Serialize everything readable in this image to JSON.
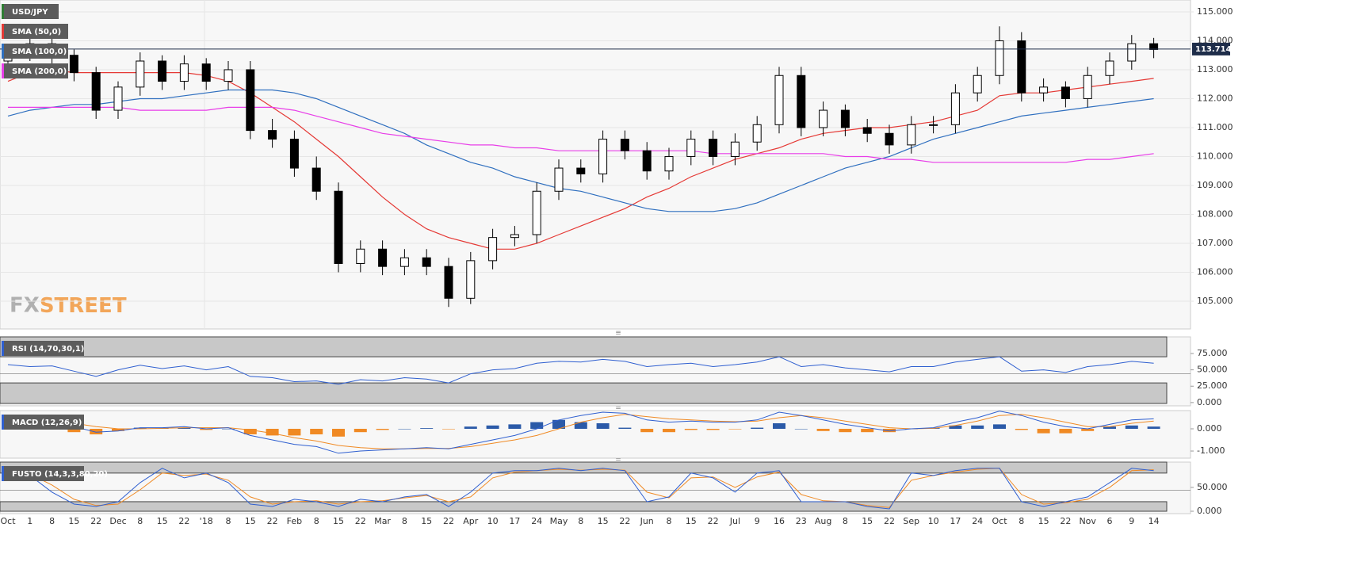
{
  "chart_data": [
    {
      "type": "candlestick",
      "title": "USD/JPY",
      "categories": [
        "Oct",
        "1",
        "8",
        "15",
        "22",
        "Dec",
        "8",
        "15",
        "22",
        "'18",
        "8",
        "15",
        "22",
        "Feb",
        "8",
        "15",
        "22",
        "Mar",
        "8",
        "15",
        "22",
        "Apr",
        "10",
        "17",
        "24",
        "May",
        "8",
        "15",
        "22",
        "Jun",
        "8",
        "15",
        "22",
        "Jul",
        "9",
        "16",
        "23",
        "Aug",
        "8",
        "15",
        "22",
        "Sep",
        "10",
        "17",
        "24",
        "Oct",
        "8",
        "15",
        "22",
        "Nov",
        "6",
        "9",
        "14"
      ],
      "open": [
        113.3,
        113.6,
        113.9,
        113.5,
        112.9,
        111.6,
        112.4,
        113.3,
        112.6,
        113.2,
        112.6,
        113.0,
        110.9,
        110.6,
        109.6,
        108.8,
        106.3,
        106.8,
        106.2,
        106.5,
        106.2,
        105.1,
        106.4,
        107.2,
        107.3,
        108.8,
        109.6,
        109.4,
        110.6,
        110.2,
        109.5,
        110.0,
        110.6,
        110.0,
        110.5,
        111.1,
        112.8,
        111.0,
        111.6,
        111.0,
        110.8,
        110.4,
        111.1,
        111.1,
        112.2,
        112.8,
        114.0,
        112.2,
        112.4,
        112.0,
        112.8,
        113.3,
        113.9
      ],
      "high": [
        113.9,
        114.2,
        114.2,
        113.7,
        113.1,
        112.6,
        113.6,
        113.5,
        113.5,
        113.4,
        113.3,
        113.3,
        111.3,
        110.9,
        110.0,
        109.1,
        107.1,
        107.1,
        106.8,
        106.8,
        106.5,
        106.7,
        107.5,
        107.6,
        109.1,
        109.9,
        109.9,
        110.9,
        110.9,
        110.5,
        110.3,
        110.9,
        110.9,
        110.8,
        111.4,
        113.1,
        113.1,
        111.9,
        111.8,
        111.3,
        111.1,
        111.4,
        111.4,
        112.5,
        113.1,
        114.5,
        114.3,
        112.7,
        112.6,
        113.1,
        113.6,
        114.2,
        114.1
      ],
      "low": [
        113.0,
        113.3,
        113.2,
        112.6,
        111.3,
        111.3,
        112.1,
        112.3,
        112.3,
        112.3,
        112.3,
        110.6,
        110.3,
        109.3,
        108.5,
        106.0,
        106.0,
        105.9,
        105.9,
        105.9,
        104.8,
        104.9,
        106.1,
        106.9,
        107.0,
        108.5,
        109.1,
        109.1,
        109.9,
        109.2,
        109.2,
        109.7,
        109.7,
        109.7,
        110.2,
        110.8,
        110.7,
        110.7,
        110.7,
        110.5,
        110.1,
        110.1,
        110.8,
        110.8,
        111.9,
        112.5,
        111.9,
        111.9,
        111.7,
        111.7,
        112.5,
        113.0,
        113.4
      ],
      "close": [
        113.6,
        113.9,
        113.5,
        112.9,
        111.6,
        112.4,
        113.3,
        112.6,
        113.2,
        112.6,
        113.0,
        110.9,
        110.6,
        109.6,
        108.8,
        106.3,
        106.8,
        106.2,
        106.5,
        106.2,
        105.1,
        106.4,
        107.2,
        107.3,
        108.8,
        109.6,
        109.4,
        110.6,
        110.2,
        109.5,
        110.0,
        110.6,
        110.0,
        110.5,
        111.1,
        112.8,
        111.0,
        111.6,
        111.0,
        110.8,
        110.4,
        111.1,
        111.1,
        112.2,
        112.8,
        114.0,
        112.2,
        112.4,
        112.0,
        112.8,
        113.3,
        113.9,
        113.7
      ],
      "up_color": "#ffffff",
      "down_color": "#000000",
      "series": [
        {
          "name": "SMA (50,0)",
          "color": "#e53935",
          "values": [
            112.6,
            112.9,
            113.0,
            112.9,
            112.9,
            112.9,
            112.9,
            112.9,
            112.9,
            112.8,
            112.6,
            112.2,
            111.7,
            111.2,
            110.6,
            110.0,
            109.3,
            108.6,
            108.0,
            107.5,
            107.2,
            107.0,
            106.8,
            106.8,
            107.0,
            107.3,
            107.6,
            107.9,
            108.2,
            108.6,
            108.9,
            109.3,
            109.6,
            109.9,
            110.1,
            110.3,
            110.6,
            110.8,
            110.9,
            111.0,
            111.0,
            111.1,
            111.2,
            111.4,
            111.6,
            112.1,
            112.2,
            112.2,
            112.3,
            112.4,
            112.5,
            112.6,
            112.7
          ]
        },
        {
          "name": "SMA (100,0)",
          "color": "#2f6fbf",
          "values": [
            111.4,
            111.6,
            111.7,
            111.8,
            111.8,
            111.9,
            112.0,
            112.0,
            112.1,
            112.2,
            112.3,
            112.3,
            112.3,
            112.2,
            112.0,
            111.7,
            111.4,
            111.1,
            110.8,
            110.4,
            110.1,
            109.8,
            109.6,
            109.3,
            109.1,
            108.9,
            108.8,
            108.6,
            108.4,
            108.2,
            108.1,
            108.1,
            108.1,
            108.2,
            108.4,
            108.7,
            109.0,
            109.3,
            109.6,
            109.8,
            110.0,
            110.3,
            110.6,
            110.8,
            111.0,
            111.2,
            111.4,
            111.5,
            111.6,
            111.7,
            111.8,
            111.9,
            112.0
          ]
        },
        {
          "name": "SMA (200,0)",
          "color": "#e83ee8",
          "values": [
            111.7,
            111.7,
            111.7,
            111.7,
            111.7,
            111.7,
            111.6,
            111.6,
            111.6,
            111.6,
            111.7,
            111.7,
            111.7,
            111.6,
            111.4,
            111.2,
            111.0,
            110.8,
            110.7,
            110.6,
            110.5,
            110.4,
            110.4,
            110.3,
            110.3,
            110.2,
            110.2,
            110.2,
            110.2,
            110.2,
            110.2,
            110.2,
            110.1,
            110.1,
            110.1,
            110.1,
            110.1,
            110.1,
            110.0,
            110.0,
            109.9,
            109.9,
            109.8,
            109.8,
            109.8,
            109.8,
            109.8,
            109.8,
            109.8,
            109.9,
            109.9,
            110.0,
            110.1
          ]
        }
      ],
      "last_price": {
        "value": 113.714,
        "label": "113.714"
      },
      "ylim": [
        104.04,
        115.41
      ],
      "yticks": [
        {
          "value": 105,
          "label": "105.000"
        },
        {
          "value": 106,
          "label": "106.000"
        },
        {
          "value": 107,
          "label": "107.000"
        },
        {
          "value": 108,
          "label": "108.000"
        },
        {
          "value": 109,
          "label": "109.000"
        },
        {
          "value": 110,
          "label": "110.000"
        },
        {
          "value": 111,
          "label": "111.000"
        },
        {
          "value": 112,
          "label": "112.000"
        },
        {
          "value": 113,
          "label": "113.000"
        },
        {
          "value": 114,
          "label": "114.000"
        },
        {
          "value": 115,
          "label": "115.000"
        }
      ]
    },
    {
      "type": "line",
      "title": "RSI (14,70,30,1)",
      "levels": [
        30,
        70
      ],
      "series": [
        {
          "color": "#2f5fd0",
          "values": [
            58,
            55,
            56,
            48,
            40,
            50,
            57,
            52,
            56,
            50,
            55,
            40,
            38,
            32,
            33,
            28,
            35,
            33,
            38,
            36,
            30,
            44,
            50,
            52,
            60,
            63,
            62,
            66,
            63,
            55,
            58,
            60,
            55,
            58,
            62,
            70,
            55,
            58,
            53,
            50,
            47,
            55,
            55,
            62,
            66,
            70,
            48,
            50,
            46,
            55,
            58,
            63,
            60
          ]
        }
      ],
      "ylim": [
        -5,
        100.4
      ],
      "yticks": [
        {
          "value": 0,
          "label": "0.000"
        },
        {
          "value": 25,
          "label": "25.000"
        },
        {
          "value": 50,
          "label": "50.000"
        },
        {
          "value": 75,
          "label": "75.000"
        }
      ]
    },
    {
      "type": "macd",
      "title": "MACD (12,26,9)",
      "series": [
        {
          "color": "#2f5fd0",
          "values": [
            0.3,
            0.35,
            0.3,
            0.1,
            -0.15,
            -0.1,
            0.05,
            0.05,
            0.1,
            0.0,
            0.05,
            -0.3,
            -0.5,
            -0.7,
            -0.8,
            -1.1,
            -1.0,
            -0.95,
            -0.9,
            -0.85,
            -0.9,
            -0.7,
            -0.5,
            -0.3,
            0.0,
            0.4,
            0.6,
            0.75,
            0.7,
            0.4,
            0.3,
            0.35,
            0.3,
            0.3,
            0.4,
            0.75,
            0.6,
            0.4,
            0.2,
            0.05,
            -0.1,
            0.0,
            0.05,
            0.3,
            0.5,
            0.8,
            0.6,
            0.3,
            0.1,
            0.0,
            0.2,
            0.4,
            0.45
          ]
        },
        {
          "color": "#f08a24",
          "values": [
            0.2,
            0.25,
            0.3,
            0.25,
            0.1,
            0.0,
            0.0,
            0.02,
            0.05,
            0.05,
            0.05,
            -0.05,
            -0.2,
            -0.4,
            -0.55,
            -0.75,
            -0.85,
            -0.9,
            -0.9,
            -0.88,
            -0.88,
            -0.8,
            -0.65,
            -0.5,
            -0.3,
            0.0,
            0.3,
            0.5,
            0.65,
            0.55,
            0.45,
            0.4,
            0.35,
            0.32,
            0.35,
            0.5,
            0.6,
            0.5,
            0.35,
            0.2,
            0.05,
            0.0,
            0.02,
            0.15,
            0.35,
            0.6,
            0.65,
            0.5,
            0.3,
            0.1,
            0.1,
            0.25,
            0.35
          ]
        }
      ],
      "histogram": [
        0.1,
        0.1,
        0,
        -0.15,
        -0.25,
        -0.1,
        0.05,
        0.03,
        0.05,
        -0.05,
        0,
        -0.25,
        -0.3,
        -0.3,
        -0.25,
        -0.35,
        -0.15,
        -0.05,
        0,
        0.03,
        -0.02,
        0.1,
        0.15,
        0.2,
        0.3,
        0.4,
        0.3,
        0.25,
        0.05,
        -0.15,
        -0.15,
        -0.05,
        -0.05,
        -0.02,
        0.05,
        0.25,
        0,
        -0.1,
        -0.15,
        -0.15,
        -0.15,
        0,
        0.03,
        0.15,
        0.15,
        0.2,
        -0.05,
        -0.2,
        -0.2,
        -0.1,
        0.1,
        0.15,
        0.1
      ],
      "histogram_colors": [
        "#2b5aa8",
        "#f08a24"
      ],
      "ylim": [
        -1.32,
        0.82
      ],
      "yticks": [
        {
          "value": -1,
          "label": "-1.000"
        },
        {
          "value": 0,
          "label": "0.000"
        }
      ]
    },
    {
      "type": "line",
      "title": "FUSTO (14,3,3,80,20)",
      "levels": [
        20,
        80
      ],
      "series": [
        {
          "color": "#2f5fd0",
          "values": [
            80,
            75,
            40,
            15,
            10,
            20,
            60,
            90,
            70,
            80,
            60,
            15,
            10,
            25,
            20,
            10,
            25,
            20,
            30,
            35,
            10,
            40,
            80,
            85,
            85,
            90,
            85,
            90,
            85,
            20,
            30,
            80,
            70,
            40,
            80,
            85,
            20,
            20,
            20,
            10,
            5,
            80,
            75,
            85,
            90,
            90,
            20,
            10,
            20,
            30,
            60,
            90,
            85
          ]
        },
        {
          "color": "#f08a24",
          "values": [
            75,
            78,
            55,
            25,
            12,
            15,
            45,
            80,
            75,
            78,
            65,
            30,
            15,
            20,
            22,
            15,
            20,
            22,
            28,
            33,
            20,
            30,
            70,
            82,
            85,
            88,
            86,
            88,
            86,
            40,
            28,
            70,
            72,
            50,
            72,
            82,
            35,
            22,
            20,
            12,
            8,
            65,
            75,
            82,
            88,
            90,
            35,
            15,
            18,
            25,
            50,
            85,
            87
          ]
        }
      ],
      "ylim": [
        -5,
        103
      ],
      "yticks": [
        {
          "value": 0,
          "label": "0.000"
        },
        {
          "value": 50,
          "label": "50.000"
        }
      ]
    }
  ]
}
